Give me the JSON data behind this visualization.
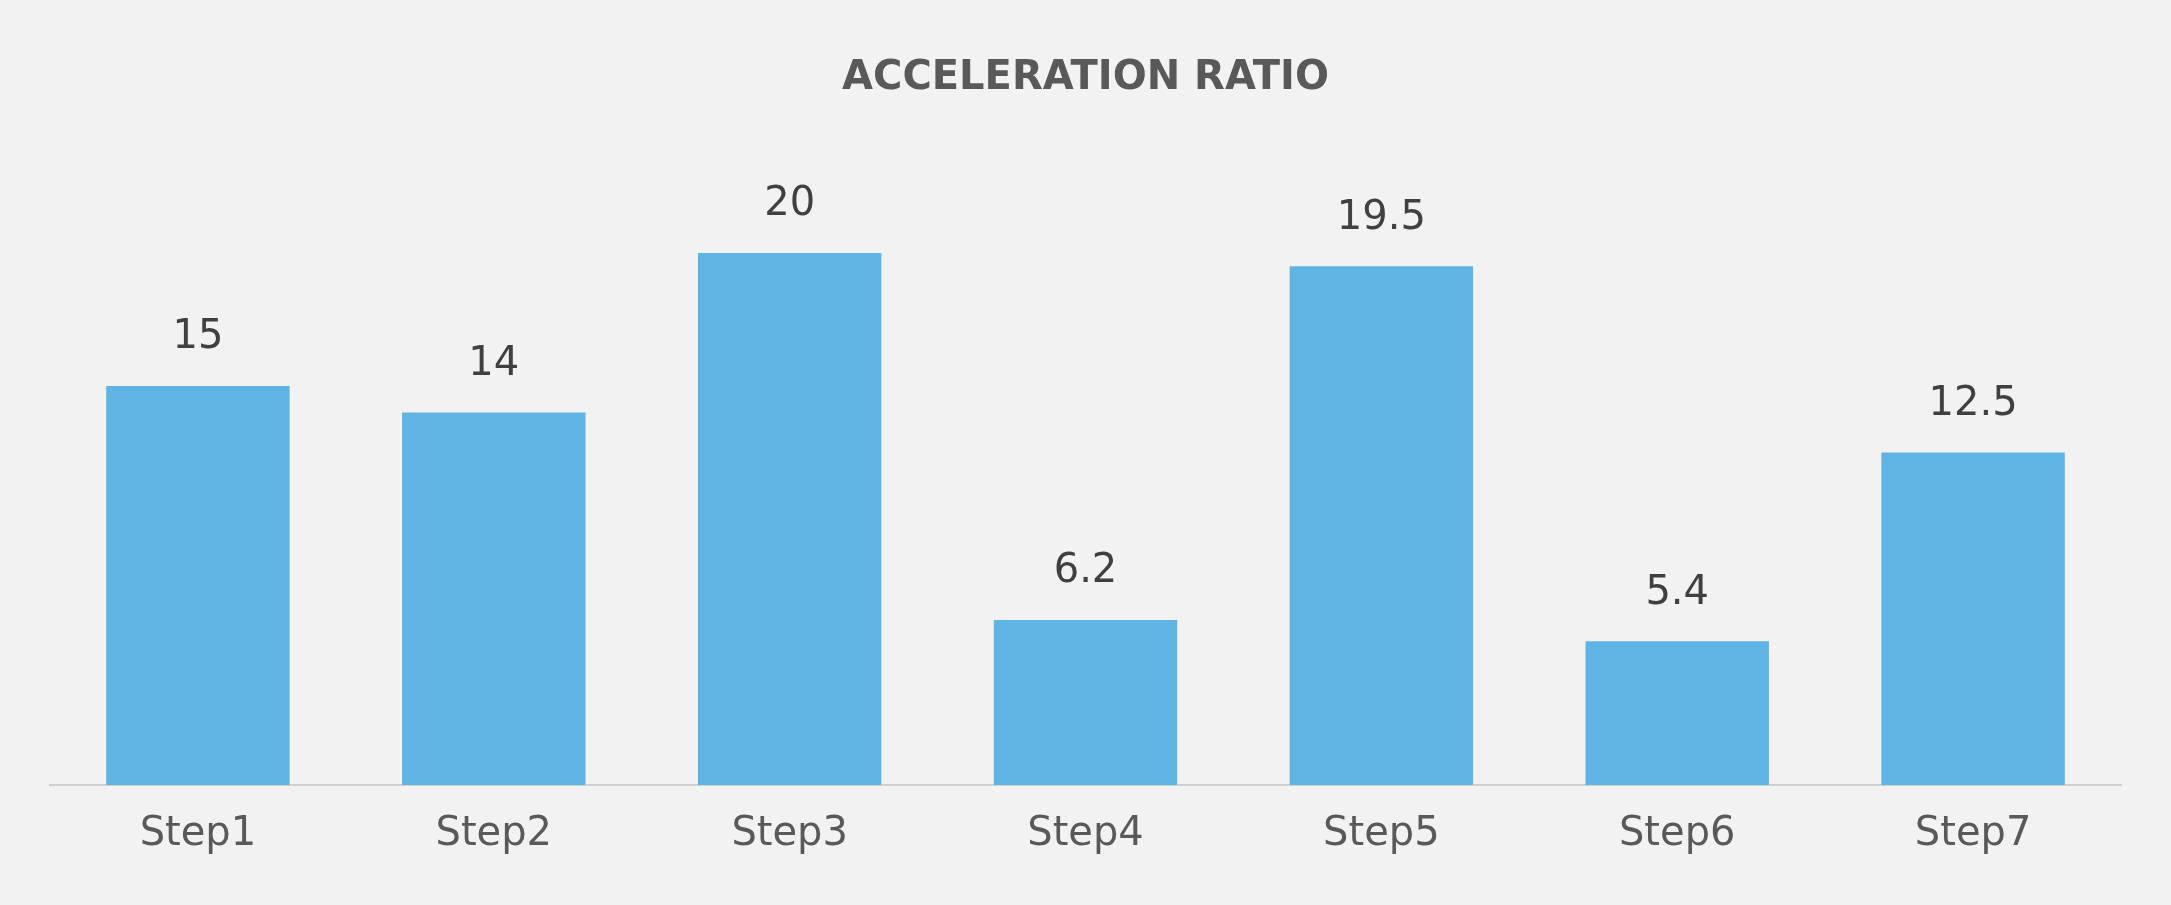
{
  "chart_data": {
    "type": "bar",
    "title": "ACCELERATION RATIO",
    "categories": [
      "Step1",
      "Step2",
      "Step3",
      "Step4",
      "Step5",
      "Step6",
      "Step7"
    ],
    "values": [
      15,
      14,
      20,
      6.2,
      19.5,
      5.4,
      12.5
    ],
    "color": "#5fb4e4",
    "data_labels": true,
    "grid": false,
    "legend": false
  }
}
